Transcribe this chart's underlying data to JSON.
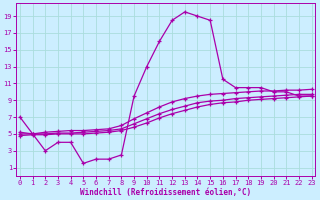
{
  "xlabel": "Windchill (Refroidissement éolien,°C)",
  "background_color": "#cceeff",
  "grid_color": "#aadddd",
  "line_color": "#aa00aa",
  "x_ticks": [
    0,
    1,
    2,
    3,
    4,
    5,
    6,
    7,
    8,
    9,
    10,
    11,
    12,
    13,
    14,
    15,
    16,
    17,
    18,
    19,
    20,
    21,
    22,
    23
  ],
  "y_ticks": [
    1,
    3,
    5,
    7,
    9,
    11,
    13,
    15,
    17,
    19
  ],
  "xlim": [
    -0.3,
    23.3
  ],
  "ylim": [
    0,
    20.5
  ],
  "series1_y": [
    7,
    5,
    3,
    4,
    4,
    1.5,
    2,
    2,
    2.5,
    9.5,
    13,
    16,
    18.5,
    19.5,
    19,
    18.5,
    11.5,
    10.5,
    10.5,
    10.5,
    10,
    10,
    9.5,
    9.5
  ],
  "series2_y": [
    5.2,
    5.0,
    5.2,
    5.3,
    5.4,
    5.4,
    5.5,
    5.6,
    6.0,
    6.8,
    7.5,
    8.2,
    8.8,
    9.2,
    9.5,
    9.7,
    9.8,
    9.9,
    10.0,
    10.1,
    10.1,
    10.2,
    10.2,
    10.3
  ],
  "series3_y": [
    5.0,
    5.0,
    5.0,
    5.1,
    5.1,
    5.2,
    5.3,
    5.4,
    5.6,
    6.2,
    6.8,
    7.4,
    7.9,
    8.3,
    8.7,
    8.9,
    9.0,
    9.2,
    9.3,
    9.4,
    9.5,
    9.6,
    9.7,
    9.7
  ],
  "series4_y": [
    4.8,
    4.9,
    4.9,
    5.0,
    5.0,
    5.0,
    5.1,
    5.2,
    5.4,
    5.8,
    6.3,
    6.9,
    7.4,
    7.8,
    8.2,
    8.5,
    8.7,
    8.8,
    9.0,
    9.1,
    9.2,
    9.3,
    9.4,
    9.5
  ]
}
